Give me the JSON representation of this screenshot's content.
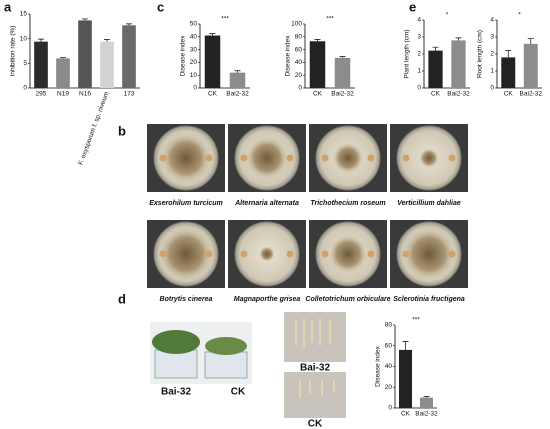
{
  "chart_data": [
    {
      "type": "bar",
      "ylabel": "Inhibition rate (%)",
      "xlabel": "F. oxysporum f. sp. niveum",
      "categories": [
        "295",
        "N19",
        "N16",
        null,
        "173"
      ],
      "values": [
        9.4,
        6.0,
        13.7,
        9.4,
        12.7
      ],
      "errors": [
        0.5,
        0.2,
        0.3,
        0.4,
        0.3
      ],
      "colors": [
        "#2b2b2b",
        "#8a8a8a",
        "#555555",
        "#d2d2d2",
        "#6a6a6a"
      ],
      "ylim": [
        0,
        15
      ],
      "yticks": [
        0,
        5,
        10,
        15
      ]
    },
    {
      "type": "bar",
      "ylabel": "Disease index",
      "annotation": "***",
      "categories": [
        "CK",
        "Bai2-32"
      ],
      "values": [
        41,
        12
      ],
      "errors": [
        1.5,
        1.5
      ],
      "colors": [
        "#222222",
        "#8c8c8c"
      ],
      "ylim": [
        0,
        50
      ],
      "yticks": [
        0,
        10,
        20,
        30,
        40,
        50
      ]
    },
    {
      "type": "bar",
      "ylabel": "Disease index",
      "annotation": "***",
      "categories": [
        "CK",
        "Bai2-32"
      ],
      "values": [
        73,
        47
      ],
      "errors": [
        3,
        2
      ],
      "colors": [
        "#222222",
        "#8c8c8c"
      ],
      "ylim": [
        0,
        100
      ],
      "yticks": [
        0,
        20,
        40,
        60,
        80,
        100
      ]
    },
    {
      "type": "bar",
      "ylabel": "Plant length (cm)",
      "annotation": "*",
      "categories": [
        "CK",
        "Bai2-32"
      ],
      "values": [
        2.2,
        2.8
      ],
      "errors": [
        0.2,
        0.15
      ],
      "colors": [
        "#222222",
        "#8c8c8c"
      ],
      "ylim": [
        0,
        4
      ],
      "yticks": [
        0,
        1,
        2,
        3,
        4
      ]
    },
    {
      "type": "bar",
      "ylabel": "Root length (cm)",
      "annotation": "*",
      "categories": [
        "CK",
        "Bai2-32"
      ],
      "values": [
        1.8,
        2.6
      ],
      "errors": [
        0.4,
        0.3
      ],
      "colors": [
        "#222222",
        "#8c8c8c"
      ],
      "ylim": [
        0,
        4
      ],
      "yticks": [
        0,
        1,
        2,
        3,
        4
      ]
    },
    {
      "type": "bar",
      "ylabel": "Disease index",
      "annotation": "***",
      "categories": [
        "CK",
        "Bai2-32"
      ],
      "values": [
        56,
        10
      ],
      "errors": [
        8,
        1
      ],
      "colors": [
        "#222222",
        "#8c8c8c"
      ],
      "ylim": [
        0,
        80
      ],
      "yticks": [
        0,
        20,
        40,
        60,
        80
      ]
    }
  ],
  "panel_labels": [
    "a",
    "b",
    "c",
    "d",
    "e"
  ],
  "dish_captions": [
    "Exserohilum turcicum",
    "Alternaria alternata",
    "Trichothecium roseum",
    "Verticillium dahliae",
    "Botrytis cinerea",
    "Magnaporthe grisea",
    "Colletotrichum orbiculare",
    "Sclerotinia fructigena"
  ],
  "photo_labels": [
    "Bai-32",
    "CK",
    "Bai-32",
    "CK"
  ]
}
